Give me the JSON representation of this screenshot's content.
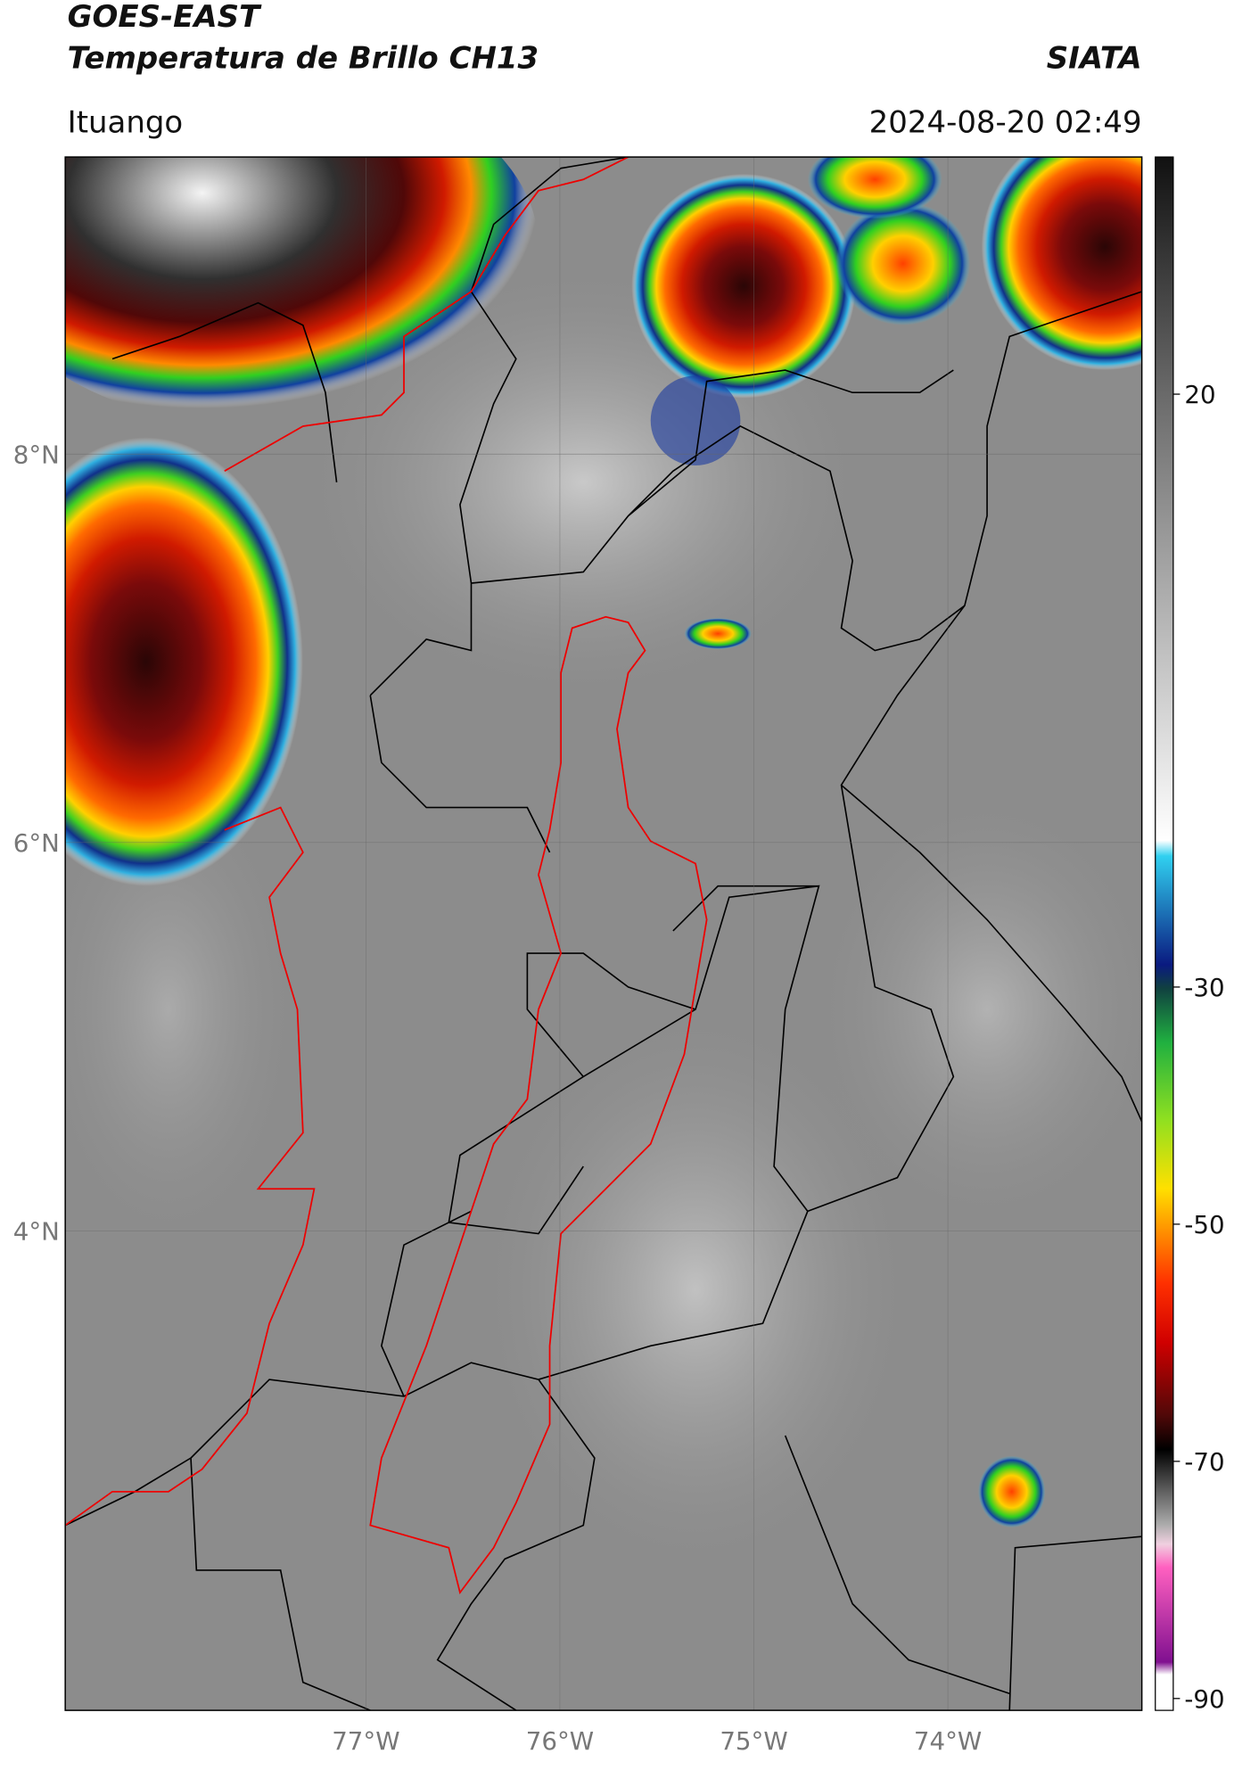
{
  "header": {
    "title": "GOES-EAST",
    "subtitle": "Temperatura de Brillo CH13",
    "source": "SIATA",
    "region": "Ituango",
    "timestamp": "2024-08-20 02:49"
  },
  "map": {
    "xlim": [
      -78.55,
      -73.0
    ],
    "ylim": [
      1.53,
      9.53
    ],
    "xticks": [
      {
        "value": -77,
        "label": "77°W"
      },
      {
        "value": -76,
        "label": "76°W"
      },
      {
        "value": -75,
        "label": "75°W"
      },
      {
        "value": -74,
        "label": "74°W"
      }
    ],
    "yticks": [
      {
        "value": 8,
        "label": "8°N"
      },
      {
        "value": 6,
        "label": "6°N"
      },
      {
        "value": 4,
        "label": "4°N"
      }
    ]
  },
  "colorbar": {
    "lim": [
      -91,
      40
    ],
    "ticks": [
      20,
      -30,
      -50,
      -70,
      -90
    ]
  }
}
